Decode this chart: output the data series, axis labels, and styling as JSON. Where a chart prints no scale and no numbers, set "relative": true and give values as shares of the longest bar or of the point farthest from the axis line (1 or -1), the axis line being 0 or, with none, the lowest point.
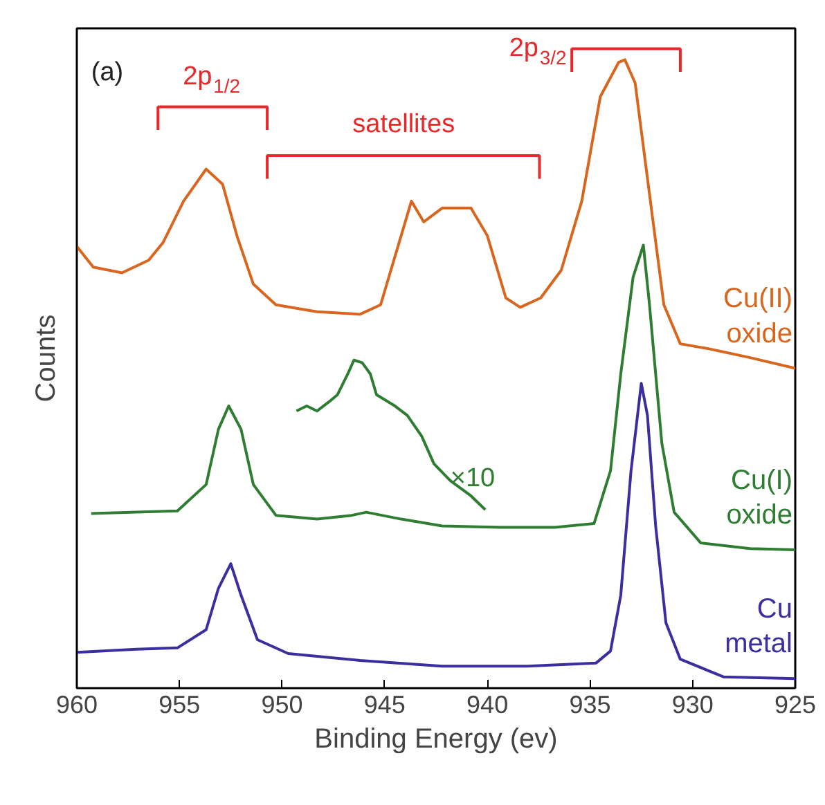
{
  "chart_data": {
    "type": "line",
    "relative": true,
    "xlabel": "Binding Energy (ev)",
    "ylabel": "Counts",
    "xlim": [
      960,
      925
    ],
    "xticks": [
      960,
      955,
      950,
      945,
      940,
      935,
      930,
      925
    ],
    "tick_labels": "x",
    "grid": false,
    "annotations": [
      "(a)",
      "×10",
      "2p$_{1/2}$",
      "satellites",
      "2p$_{3/2}$"
    ],
    "series": [
      {
        "name": "Cu(II) oxide",
        "color": "#d9661f",
        "x": [
          960,
          959.2,
          957.8,
          956.5,
          955.8,
          954.8,
          953.7,
          952.9,
          952.2,
          951.4,
          950.3,
          948.3,
          946.2,
          945.2,
          944.2,
          943.7,
          943.1,
          942.2,
          940.8,
          940.0,
          939.1,
          938.4,
          937.4,
          936.4,
          935.4,
          934.5,
          933.6,
          933.3,
          932.8,
          932.1,
          931.4,
          930.6,
          929.2,
          927.2,
          925.0
        ],
        "values": [
          0.703,
          0.67,
          0.661,
          0.681,
          0.709,
          0.775,
          0.826,
          0.802,
          0.72,
          0.643,
          0.61,
          0.599,
          0.595,
          0.61,
          0.72,
          0.775,
          0.742,
          0.764,
          0.764,
          0.72,
          0.621,
          0.606,
          0.621,
          0.665,
          0.775,
          0.941,
          0.996,
          1.0,
          0.963,
          0.786,
          0.61,
          0.548,
          0.54,
          0.526,
          0.509
        ]
      },
      {
        "name": "Cu(I) oxide",
        "color": "#2e7d32",
        "x": [
          959.3,
          957.1,
          955.1,
          953.7,
          953.1,
          952.6,
          952.0,
          951.4,
          950.3,
          948.3,
          946.6,
          945.9,
          944.2,
          942.2,
          939.4,
          936.7,
          934.8,
          934.0,
          933.5,
          932.9,
          932.4,
          932.1,
          931.5,
          930.9,
          929.6,
          927.2,
          925.0
        ],
        "values": [
          0.278,
          0.28,
          0.282,
          0.324,
          0.412,
          0.449,
          0.412,
          0.324,
          0.275,
          0.269,
          0.275,
          0.28,
          0.269,
          0.258,
          0.256,
          0.256,
          0.262,
          0.346,
          0.5,
          0.654,
          0.705,
          0.61,
          0.39,
          0.28,
          0.231,
          0.222,
          0.22
        ]
      },
      {
        "color": "#2e7d32",
        "x": [
          949.3,
          948.8,
          948.3,
          947.7,
          947.3,
          946.8,
          946.5,
          946.1,
          945.7,
          945.4,
          944.5,
          943.9,
          943.2,
          942.6,
          941.8,
          940.8,
          940.1
        ],
        "values": [
          0.441,
          0.449,
          0.441,
          0.456,
          0.467,
          0.5,
          0.522,
          0.518,
          0.5,
          0.467,
          0.449,
          0.434,
          0.401,
          0.357,
          0.33,
          0.306,
          0.284
        ]
      },
      {
        "name": "Cu metal",
        "color": "#3b2fa0",
        "x": [
          960,
          957.1,
          955.1,
          953.7,
          953.1,
          952.5,
          952.0,
          951.2,
          949.7,
          946.2,
          942.2,
          938.1,
          934.7,
          934.0,
          933.5,
          933.0,
          932.5,
          932.2,
          931.8,
          931.3,
          930.6,
          928.5,
          925.0
        ],
        "values": [
          0.057,
          0.062,
          0.064,
          0.093,
          0.159,
          0.198,
          0.148,
          0.077,
          0.055,
          0.044,
          0.035,
          0.035,
          0.04,
          0.059,
          0.148,
          0.346,
          0.485,
          0.434,
          0.258,
          0.104,
          0.046,
          0.018,
          0.015
        ]
      }
    ]
  }
}
